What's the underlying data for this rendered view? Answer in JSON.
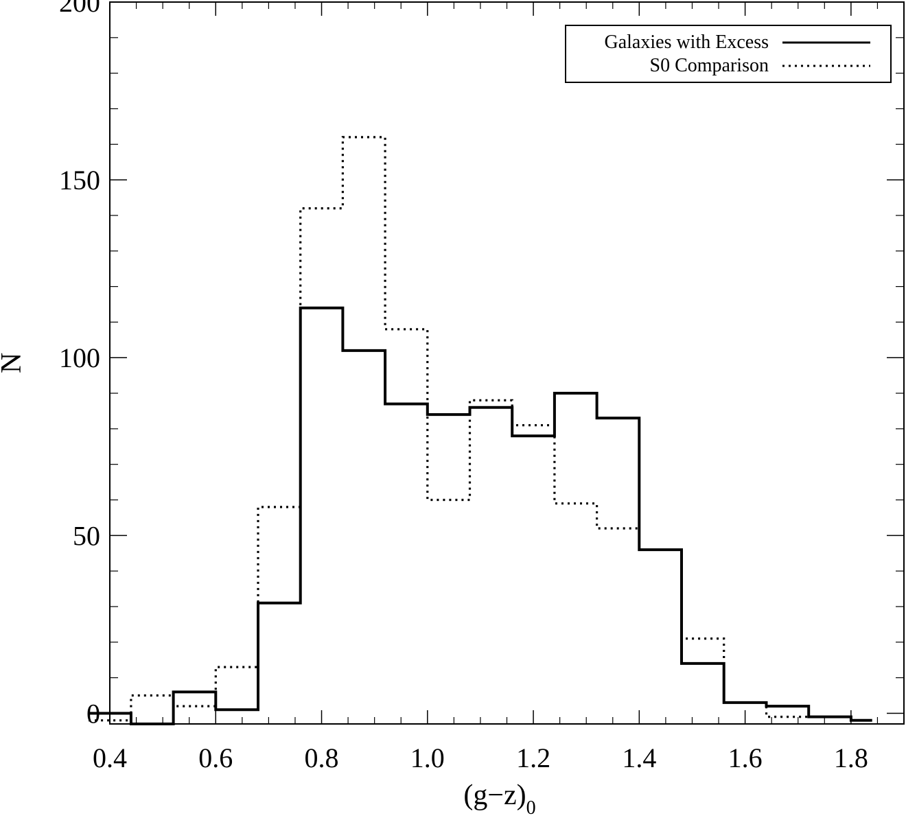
{
  "chart_data": {
    "type": "histogram",
    "xlabel": "(g−z)",
    "xlabel_subscript": "0",
    "ylabel": "N",
    "xlim": [
      0.4,
      1.9
    ],
    "ylim": [
      -3,
      200
    ],
    "x_ticks": [
      0.4,
      0.6,
      0.8,
      1.0,
      1.2,
      1.4,
      1.6,
      1.8
    ],
    "x_tick_labels": [
      "0.4",
      "0.6",
      "0.8",
      "1.0",
      "1.2",
      "1.4",
      "1.6",
      "1.8"
    ],
    "y_ticks": [
      0,
      50,
      100,
      150,
      200
    ],
    "y_tick_labels": [
      "0",
      "50",
      "100",
      "150",
      "200"
    ],
    "grid": false,
    "legend_position": "top-right",
    "colors": {
      "line": "#000000",
      "background": "#ffffff"
    },
    "series": [
      {
        "name": "Galaxies with Excess",
        "style": "solid",
        "bin_edges": [
          0.36,
          0.44,
          0.52,
          0.6,
          0.68,
          0.76,
          0.84,
          0.92,
          1.0,
          1.08,
          1.16,
          1.24,
          1.32,
          1.4,
          1.48,
          1.56,
          1.64,
          1.72,
          1.8,
          1.84
        ],
        "counts": [
          0,
          -3,
          6,
          1,
          31,
          114,
          102,
          87,
          84,
          86,
          78,
          90,
          83,
          46,
          14,
          3,
          2,
          -1,
          -2
        ]
      },
      {
        "name": "S0 Comparison",
        "style": "dotted",
        "bin_edges": [
          0.36,
          0.44,
          0.52,
          0.6,
          0.68,
          0.76,
          0.84,
          0.92,
          1.0,
          1.08,
          1.16,
          1.24,
          1.32,
          1.4,
          1.48,
          1.56,
          1.64,
          1.72,
          1.8,
          1.84
        ],
        "counts": [
          -2,
          5,
          2,
          13,
          58,
          142,
          162,
          108,
          60,
          88,
          81,
          59,
          52,
          46,
          21,
          3,
          -1,
          -1,
          -2
        ]
      }
    ]
  }
}
